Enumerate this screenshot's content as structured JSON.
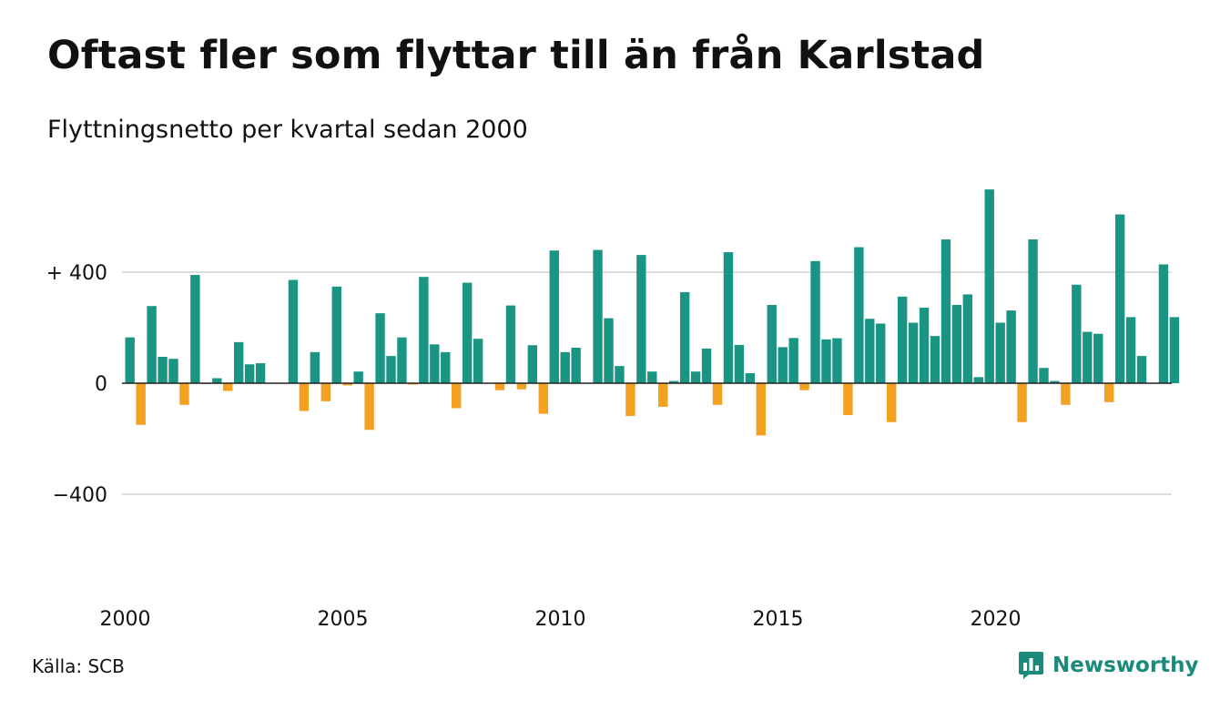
{
  "title": "Oftast fler som flyttar till än från Karlstad",
  "subtitle": "Flyttningsnetto per kvartal sedan 2000",
  "source": "Källa: SCB",
  "brand": {
    "name": "Newsworthy",
    "icon": "newsworthy-logo-icon",
    "color": "#1a8a7a"
  },
  "colors": {
    "positive": "#1a9584",
    "negative": "#f4a020",
    "grid": "#dddddd",
    "zero_line": "#222222"
  },
  "chart_data": {
    "type": "bar",
    "title": "Oftast fler som flyttar till än från Karlstad",
    "subtitle": "Flyttningsnetto per kvartal sedan 2000",
    "xlabel": "",
    "ylabel": "",
    "x_start": "2000 Q1",
    "x_ticks": [
      "2000",
      "2005",
      "2010",
      "2015",
      "2020"
    ],
    "y_ticks": [
      {
        "value": 400,
        "label": "+ 400"
      },
      {
        "value": 0,
        "label": "0"
      },
      {
        "value": -400,
        "label": "−400"
      }
    ],
    "ylim": [
      -700,
      700
    ],
    "grid": true,
    "values": [
      165,
      -150,
      278,
      95,
      88,
      -78,
      390,
      -3,
      18,
      -28,
      148,
      68,
      72,
      0,
      0,
      372,
      -100,
      112,
      -65,
      348,
      -8,
      42,
      -168,
      252,
      98,
      165,
      -5,
      383,
      140,
      112,
      -90,
      362,
      160,
      0,
      -25,
      280,
      -22,
      137,
      -110,
      478,
      112,
      128,
      0,
      480,
      234,
      62,
      -118,
      462,
      42,
      -85,
      8,
      328,
      42,
      125,
      -78,
      472,
      138,
      36,
      -188,
      282,
      130,
      163,
      -25,
      440,
      158,
      162,
      -115,
      490,
      232,
      215,
      -140,
      312,
      218,
      272,
      170,
      518,
      282,
      320,
      22,
      698,
      218,
      262,
      -140,
      518,
      55,
      8,
      -78,
      355,
      185,
      178,
      -68,
      608,
      238,
      98,
      0,
      428,
      238
    ]
  }
}
